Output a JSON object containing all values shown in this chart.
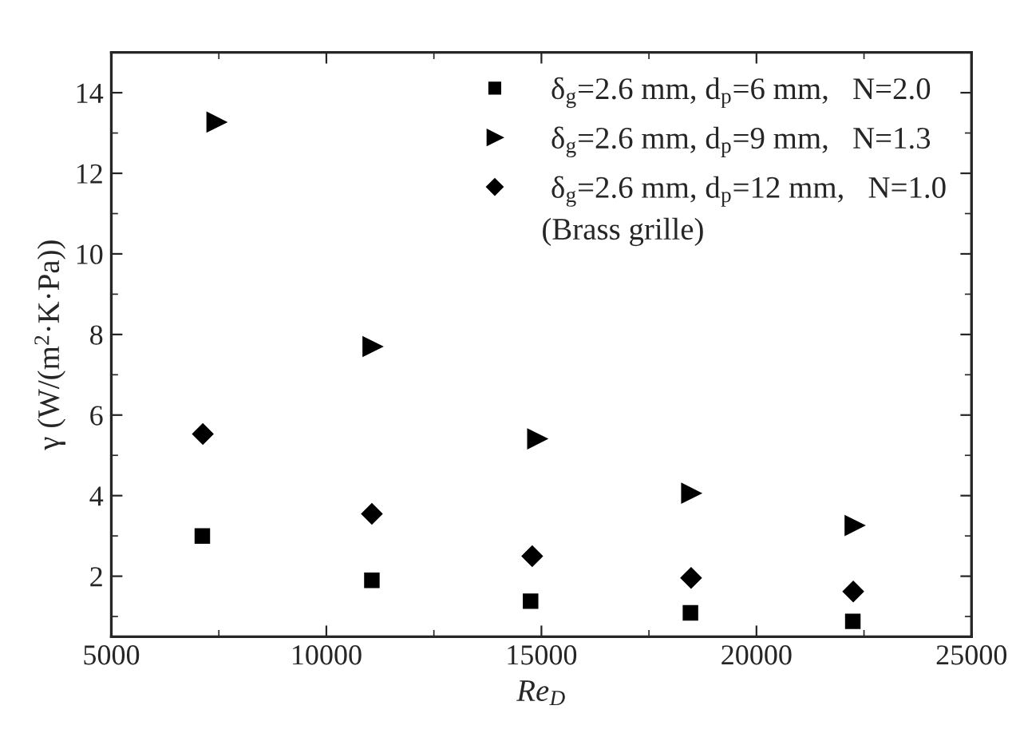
{
  "chart_data": {
    "type": "scatter",
    "xlabel": "Re$_{D}$",
    "ylabel": "γ (W/(m$^{2}$·K·Pa))",
    "xlim": [
      5000,
      25000
    ],
    "xticks": [
      5000,
      10000,
      15000,
      20000,
      25000
    ],
    "ylim": [
      0.5,
      15
    ],
    "yticks": [
      2,
      4,
      6,
      8,
      10,
      12,
      14
    ],
    "legend": "top right",
    "grid": false,
    "annotations": [
      "(Brass grille)"
    ],
    "series": [
      {
        "name": "δ$_{g}$=2.6 mm, d$_{p}$=6 mm,   N=2.0",
        "color": "#000000",
        "marker": "square",
        "x": [
          7116,
          11058,
          14748,
          18465,
          22240
        ],
        "values": [
          3.0,
          1.9,
          1.38,
          1.09,
          0.88
        ]
      },
      {
        "name": "δ$_{g}$=2.6 mm, d$_{p}$=9 mm,   N=1.3",
        "color": "#000000",
        "marker": "triangle",
        "x": [
          7443,
          11071,
          14900,
          18480,
          22280
        ],
        "values": [
          13.27,
          7.7,
          5.41,
          4.06,
          3.26
        ]
      },
      {
        "name": "δ$_{g}$=2.6 mm, d$_{p}$=12 mm,   N=1.0",
        "color": "#000000",
        "marker": "diamond",
        "x": [
          7128,
          11058,
          14786,
          18480,
          22250
        ],
        "values": [
          5.53,
          3.55,
          2.5,
          1.96,
          1.62
        ]
      }
    ]
  }
}
